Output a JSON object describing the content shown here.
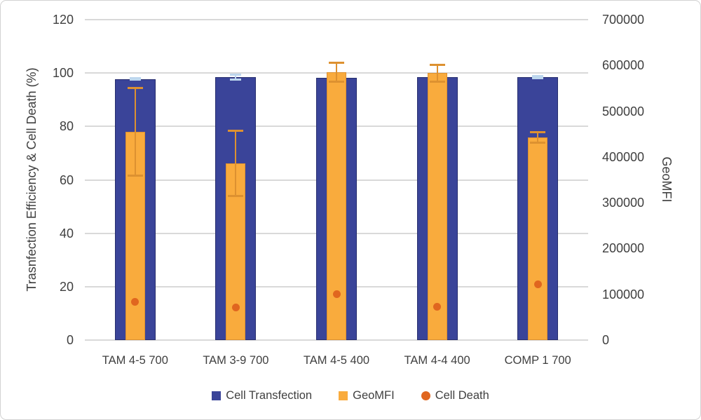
{
  "chart_data": {
    "type": "bar",
    "title": "",
    "categories": [
      "TAM 4-5 700",
      "TAM 3-9 700",
      "TAM 4-5 400",
      "TAM 4-4 400",
      "COMP 1 700"
    ],
    "left_axis": {
      "title": "Trasnfection Efficiency & Cell Death (%)",
      "min": 0,
      "max": 120,
      "ticks": [
        0,
        20,
        40,
        60,
        80,
        100,
        120
      ]
    },
    "right_axis": {
      "title": "GeoMFI",
      "min": 0,
      "max": 700000,
      "ticks": [
        0,
        100000,
        200000,
        300000,
        400000,
        500000,
        600000,
        700000
      ]
    },
    "grid": true,
    "legend_position": "bottom",
    "series": [
      {
        "name": "Cell Transfection",
        "type": "bar",
        "axis": "left",
        "marker": "square",
        "color": "#3a4499",
        "border_color": "#272e6e",
        "error_color": "#bdd7ee",
        "values": [
          97.8,
          98.5,
          98.3,
          98.5,
          98.5
        ],
        "errors": [
          0.5,
          1.0,
          0.4,
          0.4,
          0.6
        ]
      },
      {
        "name": "GeoMFI",
        "type": "bar",
        "axis": "right",
        "marker": "square",
        "color": "#f9ab3d",
        "border_color": "#dd9130",
        "error_color": "#dd9130",
        "values": [
          455000,
          386000,
          585000,
          583000,
          443000
        ],
        "errors": [
          96000,
          72000,
          22000,
          19000,
          12000
        ]
      },
      {
        "name": "Cell Death",
        "type": "scatter",
        "axis": "left",
        "marker": "circle",
        "color": "#e0661f",
        "values": [
          14.3,
          12.1,
          17.2,
          12.4,
          21.0
        ]
      }
    ],
    "colors": {
      "gridline": "#d9d9d9",
      "text": "#3f3f3f",
      "background": "#ffffff"
    }
  }
}
